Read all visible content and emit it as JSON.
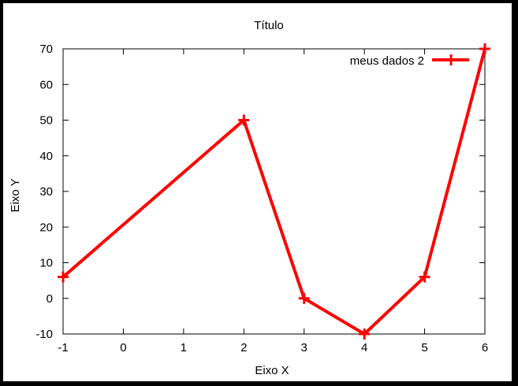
{
  "chart_data": {
    "type": "line",
    "title": "Título",
    "xlabel": "Eixo X",
    "ylabel": "Eixo Y",
    "xlim": [
      -1,
      6
    ],
    "ylim": [
      -10,
      70
    ],
    "xticks": [
      -1,
      0,
      1,
      2,
      3,
      4,
      5,
      6
    ],
    "yticks": [
      -10,
      0,
      10,
      20,
      30,
      40,
      50,
      60,
      70
    ],
    "grid": false,
    "legend_position": "top-right",
    "series": [
      {
        "name": "meus dados 2",
        "color": "#ff0000",
        "marker": "plus",
        "x": [
          -1,
          2,
          3,
          4,
          5,
          6
        ],
        "y": [
          6,
          50,
          0,
          -10,
          6,
          70
        ]
      }
    ]
  }
}
